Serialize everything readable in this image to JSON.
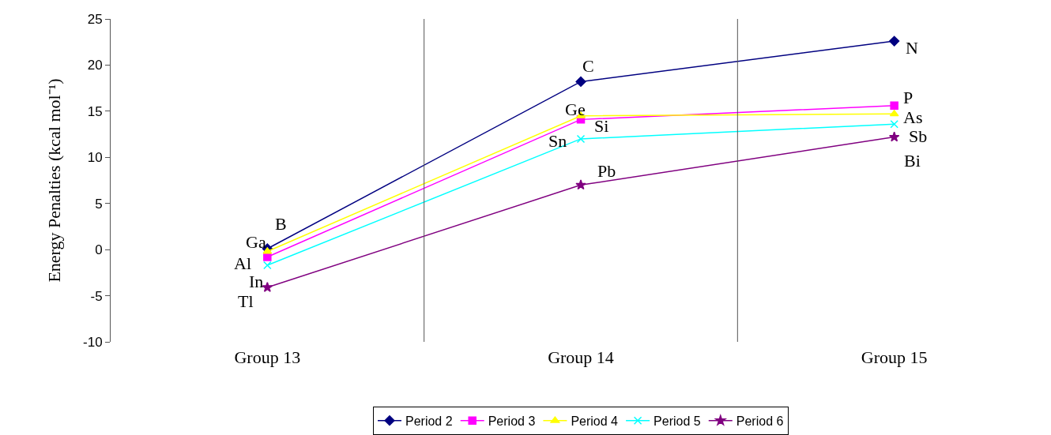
{
  "chart_data": {
    "type": "line",
    "ylabel": "Energy Penalties (kcal mol⁻¹)",
    "categories": [
      "Group 13",
      "Group 14",
      "Group 15"
    ],
    "series": [
      {
        "name": "Period 2",
        "color": "#000080",
        "marker": "diamond",
        "values": [
          0.1,
          18.2,
          22.6
        ]
      },
      {
        "name": "Period 3",
        "color": "#ff00ff",
        "marker": "square",
        "values": [
          -0.8,
          14.1,
          15.6
        ]
      },
      {
        "name": "Period 4",
        "color": "#ffff00",
        "marker": "triangle",
        "values": [
          -0.2,
          14.5,
          14.7
        ]
      },
      {
        "name": "Period 5",
        "color": "#00ffff",
        "marker": "cross",
        "values": [
          -1.7,
          12.0,
          13.6
        ]
      },
      {
        "name": "Period 6",
        "color": "#800080",
        "marker": "star",
        "values": [
          -4.1,
          7.0,
          12.2
        ]
      }
    ],
    "ylim": [
      -10,
      25
    ],
    "yticks": [
      -10,
      -5,
      0,
      5,
      10,
      15,
      20,
      25
    ],
    "grid": "x",
    "legend": "bottom",
    "annotations": [
      {
        "text": "B",
        "x": "Group 13",
        "y": 0.1
      },
      {
        "text": "C",
        "x": "Group 14",
        "y": 18.2
      },
      {
        "text": "N",
        "x": "Group 15",
        "y": 22.6
      },
      {
        "text": "Al",
        "x": "Group 13",
        "y": -0.8
      },
      {
        "text": "Si",
        "x": "Group 14",
        "y": 14.1
      },
      {
        "text": "P",
        "x": "Group 15",
        "y": 15.6
      },
      {
        "text": "Ga",
        "x": "Group 13",
        "y": -0.2
      },
      {
        "text": "Ge",
        "x": "Group 14",
        "y": 14.5
      },
      {
        "text": "As",
        "x": "Group 15",
        "y": 14.7
      },
      {
        "text": "In",
        "x": "Group 13",
        "y": -1.7
      },
      {
        "text": "Sn",
        "x": "Group 14",
        "y": 12.0
      },
      {
        "text": "Sb",
        "x": "Group 15",
        "y": 13.6
      },
      {
        "text": "Tl",
        "x": "Group 13",
        "y": -4.1
      },
      {
        "text": "Pb",
        "x": "Group 14",
        "y": 7.0
      },
      {
        "text": "Bi",
        "x": "Group 15",
        "y": 12.2
      }
    ]
  }
}
